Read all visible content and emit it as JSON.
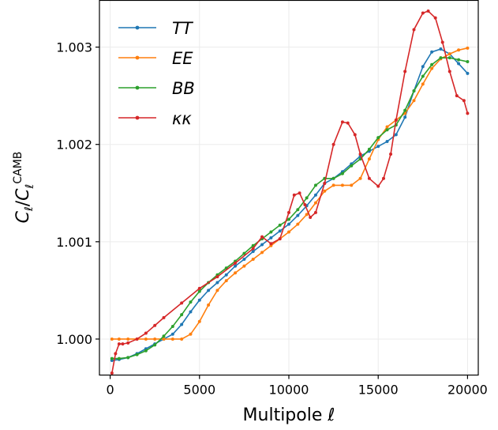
{
  "chart_data": {
    "type": "line",
    "xlabel": "Multipole ℓ",
    "ylabel": "C_ℓ/C_ℓ^CAMB",
    "xlim": [
      -600,
      20600
    ],
    "ylim": [
      0.99963,
      1.00348
    ],
    "xticks": [
      0,
      5000,
      10000,
      15000,
      20000
    ],
    "xtick_labels": [
      "0",
      "5000",
      "10000",
      "15000",
      "20000"
    ],
    "yticks": [
      1.0,
      1.001,
      1.002,
      1.003
    ],
    "ytick_labels": [
      "1.000",
      "1.001",
      "1.002",
      "1.003"
    ],
    "grid": true,
    "legend_position": "upper-left",
    "series": [
      {
        "name": "TT",
        "color": "#1f77b4",
        "x": [
          100,
          500,
          1000,
          1500,
          2000,
          2500,
          3000,
          3500,
          4000,
          4500,
          5000,
          5500,
          6000,
          6500,
          7000,
          7500,
          8000,
          8500,
          9000,
          9500,
          10000,
          10500,
          11000,
          11500,
          12000,
          12500,
          13000,
          13500,
          14000,
          14500,
          15000,
          15500,
          16000,
          16500,
          17000,
          17500,
          18000,
          18500,
          19000,
          19500,
          20000
        ],
        "y": [
          0.99978,
          0.99979,
          0.99981,
          0.99985,
          0.9999,
          0.99995,
          1.0,
          1.00005,
          1.00015,
          1.00028,
          1.0004,
          1.0005,
          1.00058,
          1.00066,
          1.00075,
          1.00082,
          1.0009,
          1.00097,
          1.00104,
          1.00111,
          1.00118,
          1.00127,
          1.00137,
          1.00148,
          1.0016,
          1.00165,
          1.00172,
          1.0018,
          1.00188,
          1.00193,
          1.00198,
          1.00203,
          1.0021,
          1.00228,
          1.00255,
          1.0028,
          1.00295,
          1.00298,
          1.00293,
          1.00283,
          1.00273
        ]
      },
      {
        "name": "EE",
        "color": "#ff7f0e",
        "x": [
          100,
          500,
          1000,
          1500,
          2000,
          2500,
          3000,
          3500,
          4000,
          4500,
          5000,
          5500,
          6000,
          6500,
          7000,
          7500,
          8000,
          8500,
          9000,
          9500,
          10000,
          10500,
          11000,
          11500,
          12000,
          12500,
          13000,
          13500,
          14000,
          14500,
          15000,
          15500,
          16000,
          16500,
          17000,
          17500,
          18000,
          18500,
          19000,
          19500,
          20000
        ],
        "y": [
          1.0,
          1.0,
          1.0,
          1.0,
          1.0,
          1.0,
          1.0,
          1.0,
          1.0,
          1.00005,
          1.00018,
          1.00035,
          1.0005,
          1.0006,
          1.00068,
          1.00075,
          1.00082,
          1.00089,
          1.00096,
          1.00103,
          1.0011,
          1.00118,
          1.00128,
          1.0014,
          1.00152,
          1.00158,
          1.00158,
          1.00158,
          1.00165,
          1.00185,
          1.00205,
          1.00218,
          1.00225,
          1.00232,
          1.00245,
          1.00262,
          1.00278,
          1.00288,
          1.00293,
          1.00297,
          1.00299
        ]
      },
      {
        "name": "BB",
        "color": "#2ca02c",
        "x": [
          100,
          500,
          1000,
          1500,
          2000,
          2500,
          3000,
          3500,
          4000,
          4500,
          5000,
          5500,
          6000,
          6500,
          7000,
          7500,
          8000,
          8500,
          9000,
          9500,
          10000,
          10500,
          11000,
          11500,
          12000,
          12500,
          13000,
          13500,
          14000,
          14500,
          15000,
          15500,
          16000,
          16500,
          17000,
          17500,
          18000,
          18500,
          19000,
          19500,
          20000
        ],
        "y": [
          0.9998,
          0.9998,
          0.99981,
          0.99984,
          0.99988,
          0.99994,
          1.00003,
          1.00013,
          1.00025,
          1.00038,
          1.00049,
          1.00058,
          1.00066,
          1.00073,
          1.0008,
          1.00088,
          1.00096,
          1.00103,
          1.0011,
          1.00117,
          1.00123,
          1.00133,
          1.00145,
          1.00158,
          1.00165,
          1.00165,
          1.0017,
          1.00178,
          1.00185,
          1.00195,
          1.00207,
          1.00215,
          1.0022,
          1.00235,
          1.00255,
          1.0027,
          1.00282,
          1.00289,
          1.00289,
          1.00287,
          1.00285
        ]
      },
      {
        "name": "κκ",
        "color": "#d62728",
        "x": [
          100,
          300,
          500,
          700,
          1000,
          1500,
          2000,
          2500,
          3000,
          4000,
          5000,
          6000,
          7000,
          8000,
          8500,
          9000,
          9500,
          10000,
          10300,
          10600,
          10900,
          11200,
          11500,
          12000,
          12500,
          13000,
          13300,
          13700,
          14000,
          14500,
          15000,
          15300,
          15700,
          16000,
          16500,
          17000,
          17500,
          17800,
          18200,
          18600,
          19000,
          19400,
          19800,
          20000
        ],
        "y": [
          0.99965,
          0.99985,
          0.99995,
          0.99995,
          0.99996,
          1.0,
          1.00006,
          1.00014,
          1.00022,
          1.00037,
          1.00052,
          1.00064,
          1.00078,
          1.00093,
          1.00105,
          1.00098,
          1.00103,
          1.0013,
          1.00148,
          1.0015,
          1.00138,
          1.00125,
          1.0013,
          1.0016,
          1.002,
          1.00223,
          1.00222,
          1.0021,
          1.0019,
          1.00165,
          1.00157,
          1.00165,
          1.0019,
          1.00225,
          1.00275,
          1.00318,
          1.00335,
          1.00337,
          1.0033,
          1.00305,
          1.00275,
          1.0025,
          1.00245,
          1.00232
        ]
      }
    ]
  }
}
